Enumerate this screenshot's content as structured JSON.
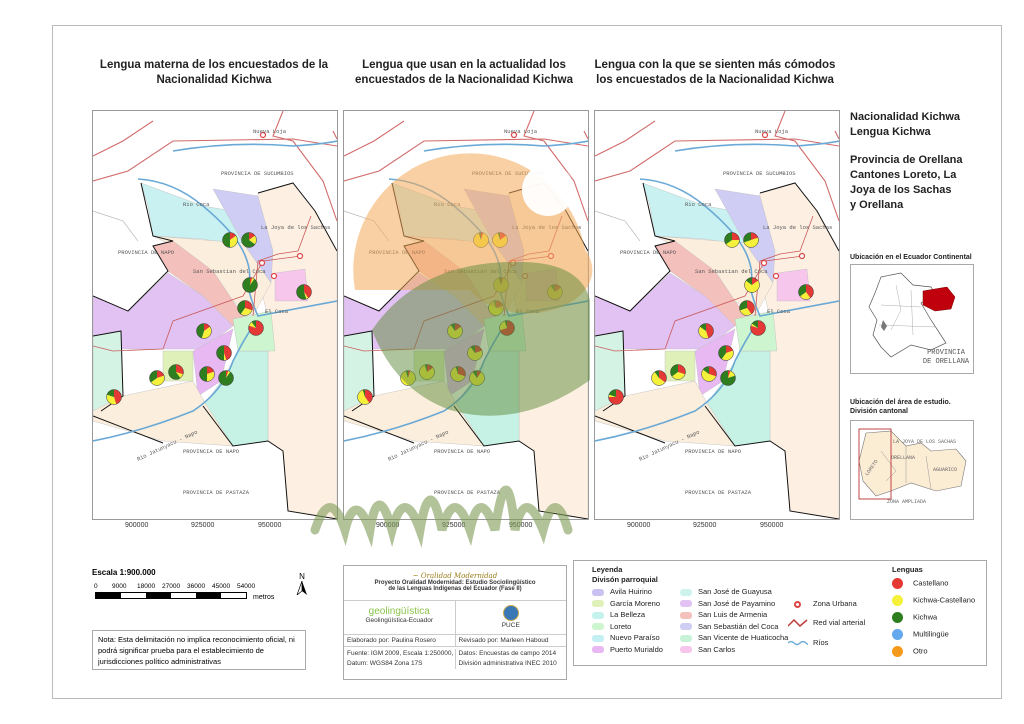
{
  "titles": [
    "Lengua materna de los encuestados de la Nacionalidad Kichwa",
    "Lengua que usan en la actualidad los encuestados de la Nacionalidad Kichwa",
    "Lengua con la que se sienten más cómodos los encuestados de la Nacionalidad Kichwa"
  ],
  "map_labels": {
    "nueva_loja": "Nueva Loja",
    "sucumbios": "PROVINCIA DE SUCUMBIOS",
    "rio_coca": "Rio Coca",
    "napo": "PROVINCIA DE NAPO",
    "joya": "La Joya de los Sachas",
    "san_sebastian": "San Sebastian del Coca",
    "el_coca": "El Coca",
    "rio_napo": "Rio Jatunyacu - Napo",
    "napo2": "PROVINCIA DE NAPO",
    "pastaza": "PROVINCIA DE PASTAZA"
  },
  "x_ticks": [
    "900000",
    "925000",
    "950000"
  ],
  "pie_data": [
    [
      [
        15,
        35,
        50
      ],
      [
        15,
        20,
        65
      ],
      [
        5,
        5,
        90
      ],
      [
        40,
        5,
        55
      ],
      [
        30,
        30,
        40
      ],
      [
        80,
        10,
        10
      ],
      [
        15,
        40,
        45
      ],
      [
        45,
        5,
        50
      ],
      [
        30,
        10,
        60
      ],
      [
        20,
        45,
        35
      ],
      [
        20,
        30,
        50
      ],
      [
        5,
        5,
        90
      ],
      [
        45,
        35,
        20
      ]
    ],
    [
      [
        5,
        90,
        5
      ],
      [
        15,
        80,
        5
      ],
      [
        5,
        90,
        5
      ],
      [
        15,
        75,
        10
      ],
      [
        20,
        75,
        5
      ],
      [
        70,
        25,
        5
      ],
      [
        15,
        75,
        10
      ],
      [
        20,
        70,
        10
      ],
      [
        15,
        80,
        5
      ],
      [
        5,
        90,
        5
      ],
      [
        30,
        65,
        5
      ],
      [
        10,
        80,
        10
      ],
      [
        40,
        55,
        5
      ]
    ],
    [
      [
        25,
        40,
        35
      ],
      [
        20,
        50,
        30
      ],
      [
        15,
        70,
        15
      ],
      [
        40,
        25,
        35
      ],
      [
        40,
        30,
        30
      ],
      [
        80,
        5,
        15
      ],
      [
        45,
        40,
        15
      ],
      [
        20,
        40,
        40
      ],
      [
        30,
        35,
        35
      ],
      [
        35,
        55,
        10
      ],
      [
        30,
        55,
        15
      ],
      [
        5,
        15,
        80
      ],
      [
        75,
        5,
        20
      ]
    ]
  ],
  "side": {
    "l1": "Nacionalidad Kichwa",
    "l2": "Lengua Kichwa",
    "l3": "Provincia de Orellana",
    "l4": "Cantones Loreto, La",
    "l5": "Joya de los Sachas",
    "l6": "y Orellana",
    "inset1_title": "Ubicación en el Ecuador Continental",
    "inset1_label": "PROVINCIA DE ORELLANA",
    "inset2_title": "Ubicación del área de estudio. División cantonal",
    "inset2_labels": [
      "LA JOYA DE LOS SACHAS",
      "LORETO",
      "ORELLANA",
      "AGUARICO",
      "ZONA AMPLIADA"
    ]
  },
  "scale": {
    "title": "Escala 1:900.000",
    "ticks": [
      "0",
      "9000",
      "18000",
      "27000",
      "36000",
      "45000",
      "54000"
    ],
    "unit": "metros",
    "north": "N"
  },
  "note": "Nota: Esta delimitación no implica reconocimiento oficial, ni podrá significar prueba para el establecimiento de jurisdicciones político administrativas",
  "credits": {
    "logo_text": "Oralidad Modernidad",
    "project": "Proyecto Oralidad Modernidad: Estudio Sociolingüístico",
    "project2": "de las Lenguas Indígenas del Ecuador  (Fase II)",
    "geo_logo": "geolingüística",
    "geo": "Geolingüística-Ecuador",
    "puce": "PUCE",
    "elaborado": "Elaborado por: Paulina Rosero",
    "revisado": "Revisado por: Marleen Haboud",
    "fuente": "Fuente: IGM 2009, Escala 1:250000,",
    "datum": "Datum: WGS84 Zona 17S",
    "datos": "Datos: Encuestas de campo 2014",
    "division": "División administrativa INEC 2010"
  },
  "legend": {
    "title": "Leyenda",
    "subtitle": "Divisón parroquial",
    "parroquias": [
      {
        "name": "Avila Huirino",
        "color": "#c9c2f0"
      },
      {
        "name": "García Moreno",
        "color": "#dff0b8"
      },
      {
        "name": "La Belleza",
        "color": "#c6f2ee"
      },
      {
        "name": "Loreto",
        "color": "#cdf5cf"
      },
      {
        "name": "Nuevo Paraíso",
        "color": "#c4f0f4"
      },
      {
        "name": "Puerto Murialdo",
        "color": "#e7b8f2"
      },
      {
        "name": "San José de Guayusa",
        "color": "#cdf3ec"
      },
      {
        "name": "San José de Payamino",
        "color": "#e2c2f2"
      },
      {
        "name": "San Luis de Armenia",
        "color": "#f4c0bc"
      },
      {
        "name": "San Sebastián del Coca",
        "color": "#cfcdf3"
      },
      {
        "name": "San Vicente de Huaticocha",
        "color": "#c7f2d8"
      },
      {
        "name": "San Carlos",
        "color": "#f6c6ec"
      }
    ],
    "symbols": [
      "Zona Urbana",
      "Red vial arterial",
      "Ríos"
    ],
    "lenguas_title": "Lenguas",
    "lenguas": [
      {
        "name": "Castellano",
        "color": "#e53935"
      },
      {
        "name": "Kichwa-Castellano",
        "color": "#f5f03a"
      },
      {
        "name": "Kichwa",
        "color": "#2e7d1f"
      },
      {
        "name": "Multilingüe",
        "color": "#64a8ee"
      },
      {
        "name": "Otro",
        "color": "#f59a1b"
      }
    ]
  },
  "watermark": {
    "line1": "oralidad",
    "line2": "MODERNIDAD"
  }
}
